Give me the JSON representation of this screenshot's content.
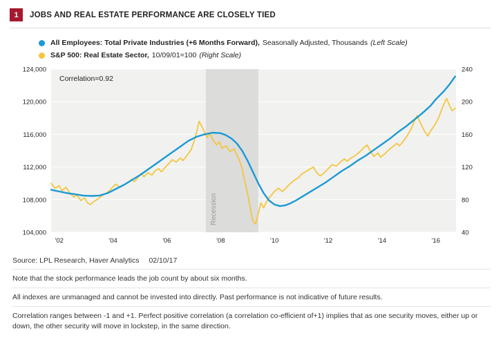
{
  "figure_number": "1",
  "title": "JOBS AND REAL ESTATE PERFORMANCE ARE CLOSELY TIED",
  "colors": {
    "badge": "#a6192e",
    "employees_line": "#1a99d4",
    "reit_line": "#f3c63f",
    "plot_bg": "#f1f1ef",
    "band": "#dcdcdb",
    "band_label": "#9b9b9b"
  },
  "legend": [
    {
      "bold": "All Employees: Total Private Industries (+6 Months Forward),",
      "regular": "Seasonally Adjusted, Thousands",
      "italic": "(Left Scale)"
    },
    {
      "bold": "S&P 500: Real Estate Sector,",
      "regular": "10/09/01=100",
      "italic": "(Right Scale)"
    }
  ],
  "footer": {
    "source": "Source: LPL Research, Haver Analytics",
    "date": "02/10/17",
    "notes": [
      "Note that the stock performance leads the job count by about six months.",
      "All indexes are unmanaged and cannot be invested into directly. Past performance is not indicative of future results.",
      "Correlation ranges between -1 and +1. Perfect positive correlation (a correlation co-efficient of+1) implies that as one security moves, either up or down, the other security will move in lockstep, in the same direction."
    ]
  },
  "chart_data": {
    "type": "line",
    "title": "JOBS AND REAL ESTATE PERFORMANCE ARE CLOSELY TIED",
    "annotation": "Correlation=0.92",
    "x_range": [
      2001.7,
      2016.75
    ],
    "x_ticks": [
      "'02",
      "'04",
      "'06",
      "'08",
      "'10",
      "'12",
      "'14",
      "'16"
    ],
    "x_tick_years": [
      2002,
      2004,
      2006,
      2008,
      2010,
      2012,
      2014,
      2016
    ],
    "left_axis": {
      "range": [
        104000,
        124000
      ],
      "ticks": [
        104000,
        108000,
        112000,
        116000,
        120000,
        124000
      ],
      "labels": [
        "104,000",
        "108,000",
        "112,000",
        "116,000",
        "120,000",
        "124,000"
      ]
    },
    "right_axis": {
      "range": [
        40,
        240
      ],
      "ticks": [
        40,
        80,
        120,
        160,
        200,
        240
      ],
      "labels": [
        "40",
        "80",
        "120",
        "160",
        "200",
        "240"
      ]
    },
    "grid": true,
    "legend_position": "top-left-above-plot",
    "recession_band": {
      "start": 2007.45,
      "end": 2009.4,
      "label": "Recession"
    },
    "series": [
      {
        "key": "sp500-real-estate",
        "name": "S&P 500: Real Estate Sector, 10/09/01=100 (Right Scale)",
        "axis": "right",
        "color": "#f3c63f",
        "width": 1.8,
        "points": [
          [
            2001.7,
            100
          ],
          [
            2001.85,
            94
          ],
          [
            2002.0,
            97
          ],
          [
            2002.1,
            91
          ],
          [
            2002.25,
            95
          ],
          [
            2002.4,
            88
          ],
          [
            2002.55,
            83
          ],
          [
            2002.65,
            86
          ],
          [
            2002.8,
            79
          ],
          [
            2002.95,
            82
          ],
          [
            2003.05,
            76
          ],
          [
            2003.15,
            74
          ],
          [
            2003.3,
            78
          ],
          [
            2003.45,
            81
          ],
          [
            2003.6,
            85
          ],
          [
            2003.75,
            88
          ],
          [
            2003.9,
            92
          ],
          [
            2004.0,
            96
          ],
          [
            2004.1,
            99
          ],
          [
            2004.25,
            95
          ],
          [
            2004.4,
            98
          ],
          [
            2004.55,
            101
          ],
          [
            2004.7,
            105
          ],
          [
            2004.8,
            102
          ],
          [
            2004.95,
            108
          ],
          [
            2005.05,
            112
          ],
          [
            2005.15,
            108
          ],
          [
            2005.3,
            113
          ],
          [
            2005.45,
            110
          ],
          [
            2005.55,
            115
          ],
          [
            2005.7,
            118
          ],
          [
            2005.8,
            114
          ],
          [
            2005.95,
            120
          ],
          [
            2006.1,
            125
          ],
          [
            2006.2,
            129
          ],
          [
            2006.35,
            126
          ],
          [
            2006.5,
            131
          ],
          [
            2006.6,
            128
          ],
          [
            2006.75,
            134
          ],
          [
            2006.9,
            141
          ],
          [
            2007.0,
            150
          ],
          [
            2007.1,
            162
          ],
          [
            2007.2,
            176
          ],
          [
            2007.3,
            170
          ],
          [
            2007.4,
            163
          ],
          [
            2007.5,
            156
          ],
          [
            2007.6,
            162
          ],
          [
            2007.7,
            154
          ],
          [
            2007.85,
            147
          ],
          [
            2007.95,
            151
          ],
          [
            2008.05,
            143
          ],
          [
            2008.2,
            146
          ],
          [
            2008.35,
            139
          ],
          [
            2008.5,
            142
          ],
          [
            2008.6,
            135
          ],
          [
            2008.7,
            128
          ],
          [
            2008.8,
            118
          ],
          [
            2008.9,
            102
          ],
          [
            2009.0,
            88
          ],
          [
            2009.1,
            70
          ],
          [
            2009.2,
            54
          ],
          [
            2009.3,
            50
          ],
          [
            2009.4,
            63
          ],
          [
            2009.5,
            76
          ],
          [
            2009.6,
            70
          ],
          [
            2009.75,
            80
          ],
          [
            2009.9,
            86
          ],
          [
            2010.0,
            90
          ],
          [
            2010.15,
            94
          ],
          [
            2010.3,
            90
          ],
          [
            2010.45,
            95
          ],
          [
            2010.6,
            100
          ],
          [
            2010.75,
            104
          ],
          [
            2010.9,
            107
          ],
          [
            2011.0,
            111
          ],
          [
            2011.15,
            114
          ],
          [
            2011.3,
            117
          ],
          [
            2011.45,
            120
          ],
          [
            2011.55,
            114
          ],
          [
            2011.7,
            109
          ],
          [
            2011.85,
            113
          ],
          [
            2012.0,
            118
          ],
          [
            2012.15,
            123
          ],
          [
            2012.3,
            121
          ],
          [
            2012.45,
            126
          ],
          [
            2012.6,
            130
          ],
          [
            2012.7,
            127
          ],
          [
            2012.85,
            131
          ],
          [
            2013.0,
            134
          ],
          [
            2013.15,
            138
          ],
          [
            2013.3,
            143
          ],
          [
            2013.45,
            147
          ],
          [
            2013.55,
            140
          ],
          [
            2013.7,
            133
          ],
          [
            2013.85,
            137
          ],
          [
            2013.95,
            132
          ],
          [
            2014.1,
            136
          ],
          [
            2014.25,
            141
          ],
          [
            2014.4,
            145
          ],
          [
            2014.55,
            149
          ],
          [
            2014.65,
            146
          ],
          [
            2014.8,
            152
          ],
          [
            2014.95,
            159
          ],
          [
            2015.1,
            168
          ],
          [
            2015.2,
            176
          ],
          [
            2015.3,
            183
          ],
          [
            2015.4,
            176
          ],
          [
            2015.5,
            169
          ],
          [
            2015.6,
            163
          ],
          [
            2015.7,
            158
          ],
          [
            2015.8,
            164
          ],
          [
            2015.95,
            171
          ],
          [
            2016.1,
            180
          ],
          [
            2016.2,
            189
          ],
          [
            2016.3,
            197
          ],
          [
            2016.4,
            204
          ],
          [
            2016.5,
            196
          ],
          [
            2016.6,
            189
          ],
          [
            2016.72,
            192
          ]
        ]
      },
      {
        "key": "employees",
        "name": "All Employees: Total Private Industries (+6 Months Forward), Seasonally Adjusted, Thousands (Left Scale)",
        "axis": "left",
        "color": "#1a99d4",
        "width": 2.4,
        "points": [
          [
            2001.7,
            109200
          ],
          [
            2002.0,
            109000
          ],
          [
            2002.3,
            108800
          ],
          [
            2002.6,
            108650
          ],
          [
            2002.9,
            108500
          ],
          [
            2003.2,
            108450
          ],
          [
            2003.5,
            108500
          ],
          [
            2003.8,
            108800
          ],
          [
            2004.1,
            109300
          ],
          [
            2004.4,
            109800
          ],
          [
            2004.7,
            110400
          ],
          [
            2005.0,
            111000
          ],
          [
            2005.3,
            111700
          ],
          [
            2005.6,
            112400
          ],
          [
            2005.9,
            113100
          ],
          [
            2006.2,
            113800
          ],
          [
            2006.5,
            114500
          ],
          [
            2006.8,
            115200
          ],
          [
            2007.1,
            115700
          ],
          [
            2007.4,
            116000
          ],
          [
            2007.7,
            116200
          ],
          [
            2008.0,
            116150
          ],
          [
            2008.2,
            115900
          ],
          [
            2008.4,
            115500
          ],
          [
            2008.6,
            114900
          ],
          [
            2008.8,
            114000
          ],
          [
            2009.0,
            112800
          ],
          [
            2009.2,
            111400
          ],
          [
            2009.4,
            110000
          ],
          [
            2009.6,
            108800
          ],
          [
            2009.8,
            107900
          ],
          [
            2010.0,
            107400
          ],
          [
            2010.2,
            107200
          ],
          [
            2010.4,
            107300
          ],
          [
            2010.6,
            107550
          ],
          [
            2010.8,
            107900
          ],
          [
            2011.0,
            108300
          ],
          [
            2011.3,
            108900
          ],
          [
            2011.6,
            109500
          ],
          [
            2011.9,
            110100
          ],
          [
            2012.2,
            110800
          ],
          [
            2012.5,
            111500
          ],
          [
            2012.8,
            112100
          ],
          [
            2013.1,
            112800
          ],
          [
            2013.4,
            113400
          ],
          [
            2013.7,
            114100
          ],
          [
            2014.0,
            114800
          ],
          [
            2014.3,
            115500
          ],
          [
            2014.6,
            116300
          ],
          [
            2014.9,
            117000
          ],
          [
            2015.2,
            117800
          ],
          [
            2015.5,
            118600
          ],
          [
            2015.8,
            119500
          ],
          [
            2016.0,
            120300
          ],
          [
            2016.3,
            121300
          ],
          [
            2016.5,
            122100
          ],
          [
            2016.72,
            123100
          ]
        ]
      }
    ]
  }
}
